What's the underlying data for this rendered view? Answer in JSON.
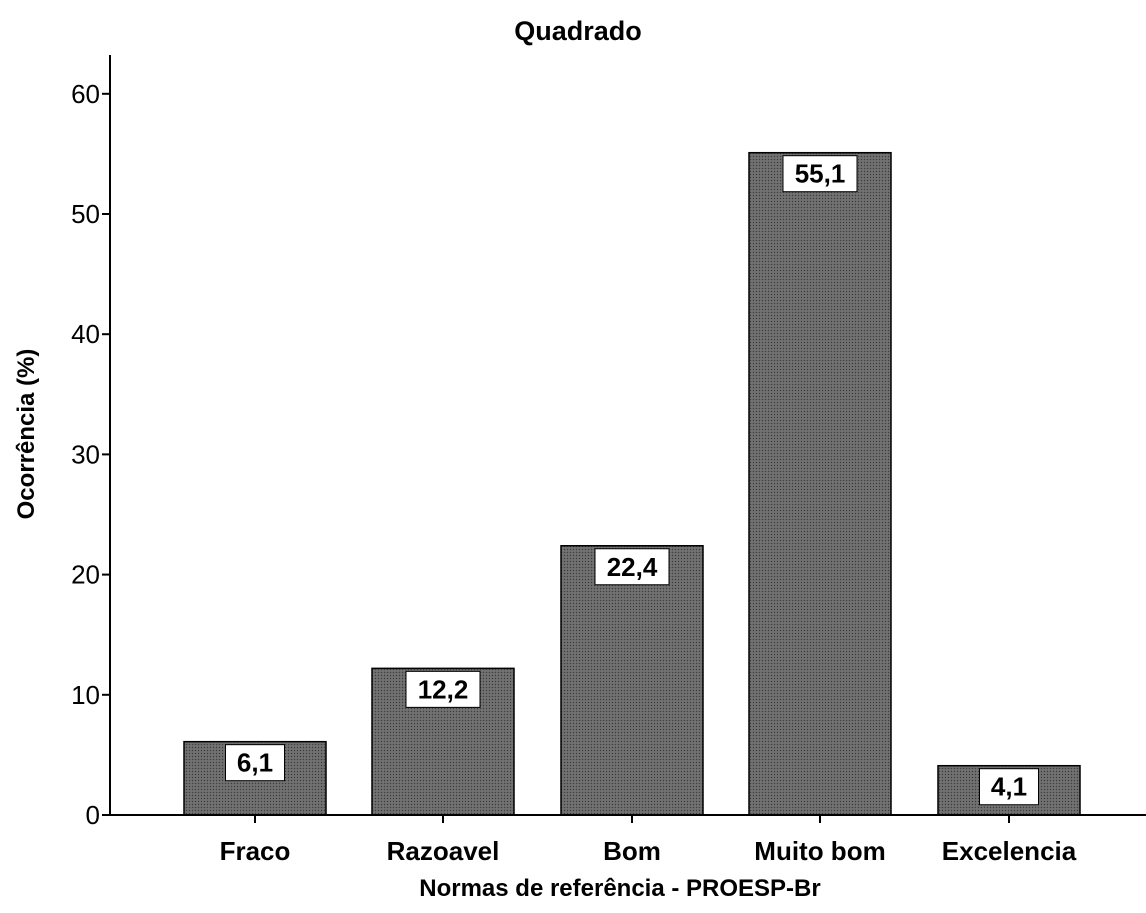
{
  "chart_data": {
    "type": "bar",
    "title": "Quadrado",
    "xlabel": "Normas de referência - PROESP-Br",
    "ylabel": "Ocorrência (%)",
    "categories": [
      "Fraco",
      "Razoavel",
      "Bom",
      "Muito bom",
      "Excelencia"
    ],
    "values": [
      6.1,
      12.2,
      22.4,
      55.1,
      4.1
    ],
    "data_labels": [
      "6,1",
      "12,2",
      "22,4",
      "55,1",
      "4,1"
    ],
    "ylim": [
      0,
      62
    ],
    "yticks": [
      0,
      10,
      20,
      30,
      40,
      50,
      60
    ],
    "ytick_labels": [
      "0",
      "10",
      "20",
      "30",
      "40",
      "50",
      "60"
    ],
    "grid": false,
    "legend": "none",
    "colors": {
      "bar_fill": "#5f5f5f",
      "bar_stroke": "#000000",
      "axis": "#000000"
    }
  }
}
